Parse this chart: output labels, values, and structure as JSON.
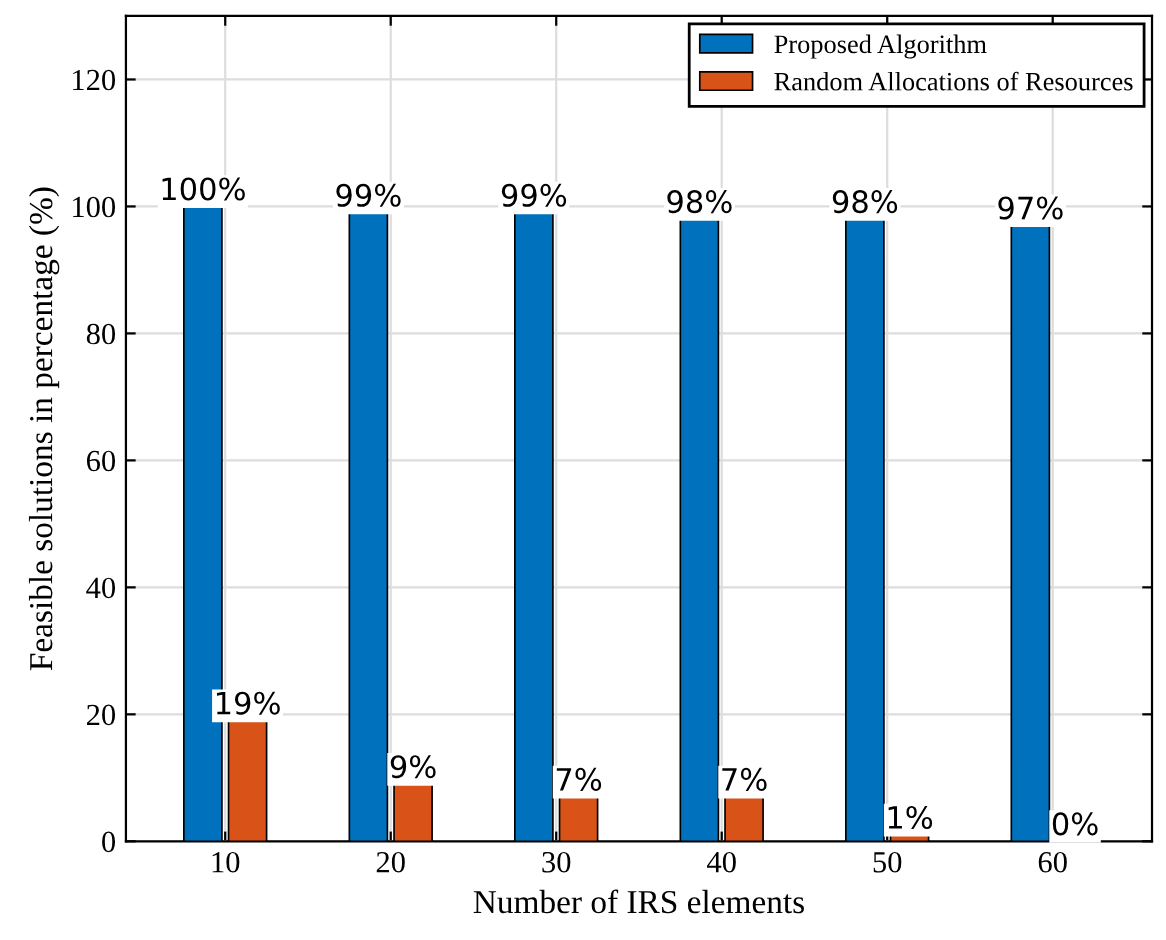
{
  "chart_data": {
    "type": "bar",
    "xlabel": "Number of IRS elements",
    "ylabel": "Feasible solutions in percentage (%)",
    "categories": [
      "10",
      "20",
      "30",
      "40",
      "50",
      "60"
    ],
    "series": [
      {
        "name": "Proposed Algorithm",
        "color": "#0072bd",
        "values": [
          100,
          99,
          99,
          98,
          98,
          97
        ],
        "value_labels": [
          "100%",
          "99%",
          "99%",
          "98%",
          "98%",
          "97%"
        ]
      },
      {
        "name": "Random Allocations of Resources",
        "color": "#d95319",
        "values": [
          19,
          9,
          7,
          7,
          1,
          0
        ],
        "value_labels": [
          "19%",
          "9%",
          "7%",
          "7%",
          "1%",
          "0%"
        ]
      }
    ],
    "ylim": [
      0,
      130
    ],
    "yticks": [
      0,
      20,
      40,
      60,
      80,
      100,
      120
    ],
    "grid": true,
    "legend": "top right"
  }
}
